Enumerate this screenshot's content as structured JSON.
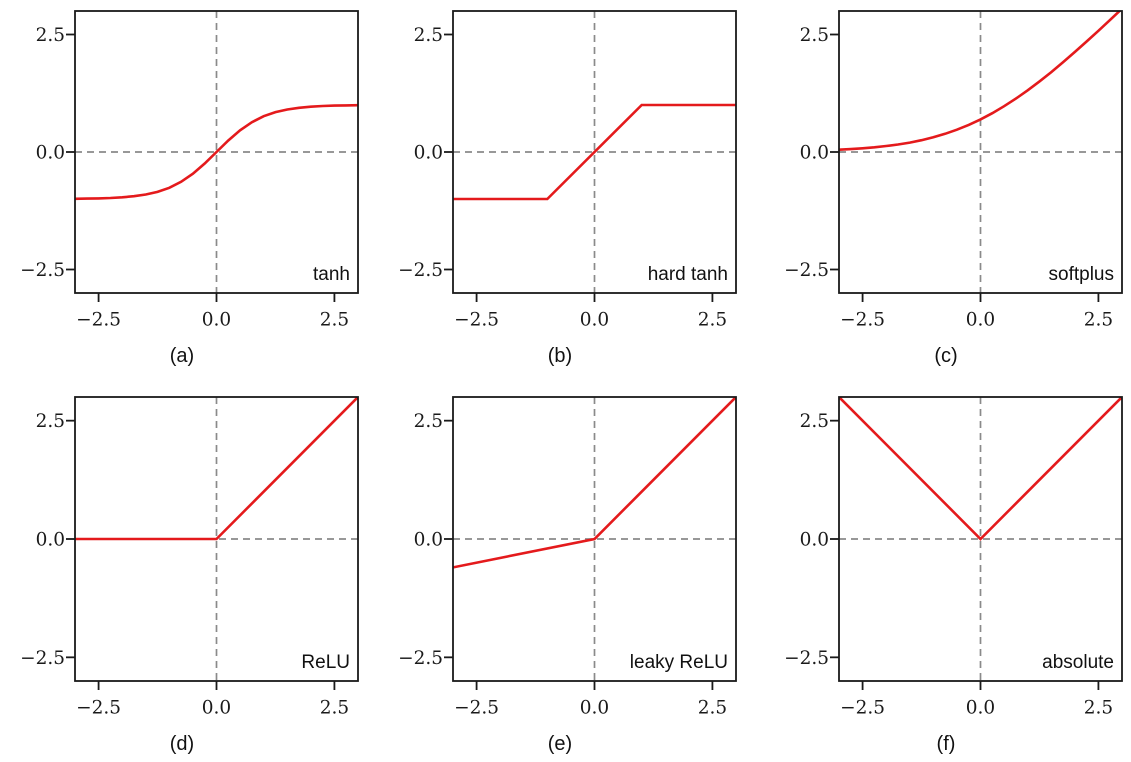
{
  "figure": {
    "description": "Grid of six activation function plots",
    "background": "#ffffff"
  },
  "style": {
    "curve_color": "#e41a1c",
    "zero_line_color": "#8a8a8a",
    "spine_color": "#1a1a1a",
    "text_color": "#1a1a1a"
  },
  "axes": {
    "xlim": [
      -3,
      3
    ],
    "ylim": [
      -3,
      3
    ],
    "grid": false,
    "zero_lines": true,
    "xticks": {
      "values": [
        -2.5,
        0,
        2.5
      ],
      "labels": [
        "−2.5",
        "0.0",
        "2.5"
      ]
    },
    "yticks": {
      "values": [
        2.5,
        0,
        -2.5
      ],
      "labels": [
        "2.5",
        "0.0",
        "−2.5"
      ]
    }
  },
  "chart_data": [
    {
      "type": "line",
      "label": "tanh",
      "caption": "(a)",
      "x": [
        -3,
        -2.75,
        -2.5,
        -2.25,
        -2,
        -1.75,
        -1.5,
        -1.25,
        -1,
        -0.75,
        -0.5,
        -0.25,
        0,
        0.25,
        0.5,
        0.75,
        1,
        1.25,
        1.5,
        1.75,
        2,
        2.25,
        2.5,
        2.75,
        3
      ],
      "y": [
        -0.995,
        -0.992,
        -0.987,
        -0.978,
        -0.964,
        -0.941,
        -0.905,
        -0.848,
        -0.762,
        -0.635,
        -0.462,
        -0.245,
        0,
        0.245,
        0.462,
        0.635,
        0.762,
        0.848,
        0.905,
        0.941,
        0.964,
        0.978,
        0.987,
        0.992,
        0.995
      ]
    },
    {
      "type": "line",
      "label": "hard tanh",
      "caption": "(b)",
      "x": [
        -3,
        -1,
        1,
        3
      ],
      "y": [
        -1,
        -1,
        1,
        1
      ]
    },
    {
      "type": "line",
      "label": "softplus",
      "caption": "(c)",
      "x": [
        -3,
        -2.75,
        -2.5,
        -2.25,
        -2,
        -1.75,
        -1.5,
        -1.25,
        -1,
        -0.75,
        -0.5,
        -0.25,
        0,
        0.25,
        0.5,
        0.75,
        1,
        1.25,
        1.5,
        1.75,
        2,
        2.25,
        2.5,
        2.75,
        3
      ],
      "y": [
        0.049,
        0.062,
        0.079,
        0.1,
        0.127,
        0.16,
        0.201,
        0.252,
        0.313,
        0.387,
        0.474,
        0.576,
        0.693,
        0.826,
        0.974,
        1.137,
        1.313,
        1.502,
        1.701,
        1.91,
        2.127,
        2.35,
        2.579,
        2.812,
        3.049
      ]
    },
    {
      "type": "line",
      "label": "ReLU",
      "caption": "(d)",
      "x": [
        -3,
        0,
        3
      ],
      "y": [
        0,
        0,
        3
      ]
    },
    {
      "type": "line",
      "label": "leaky ReLU",
      "caption": "(e)",
      "x": [
        -3,
        0,
        3
      ],
      "y": [
        -0.6,
        0,
        3
      ]
    },
    {
      "type": "line",
      "label": "absolute",
      "caption": "(f)",
      "x": [
        -3,
        0,
        3
      ],
      "y": [
        3,
        0,
        3
      ]
    }
  ]
}
